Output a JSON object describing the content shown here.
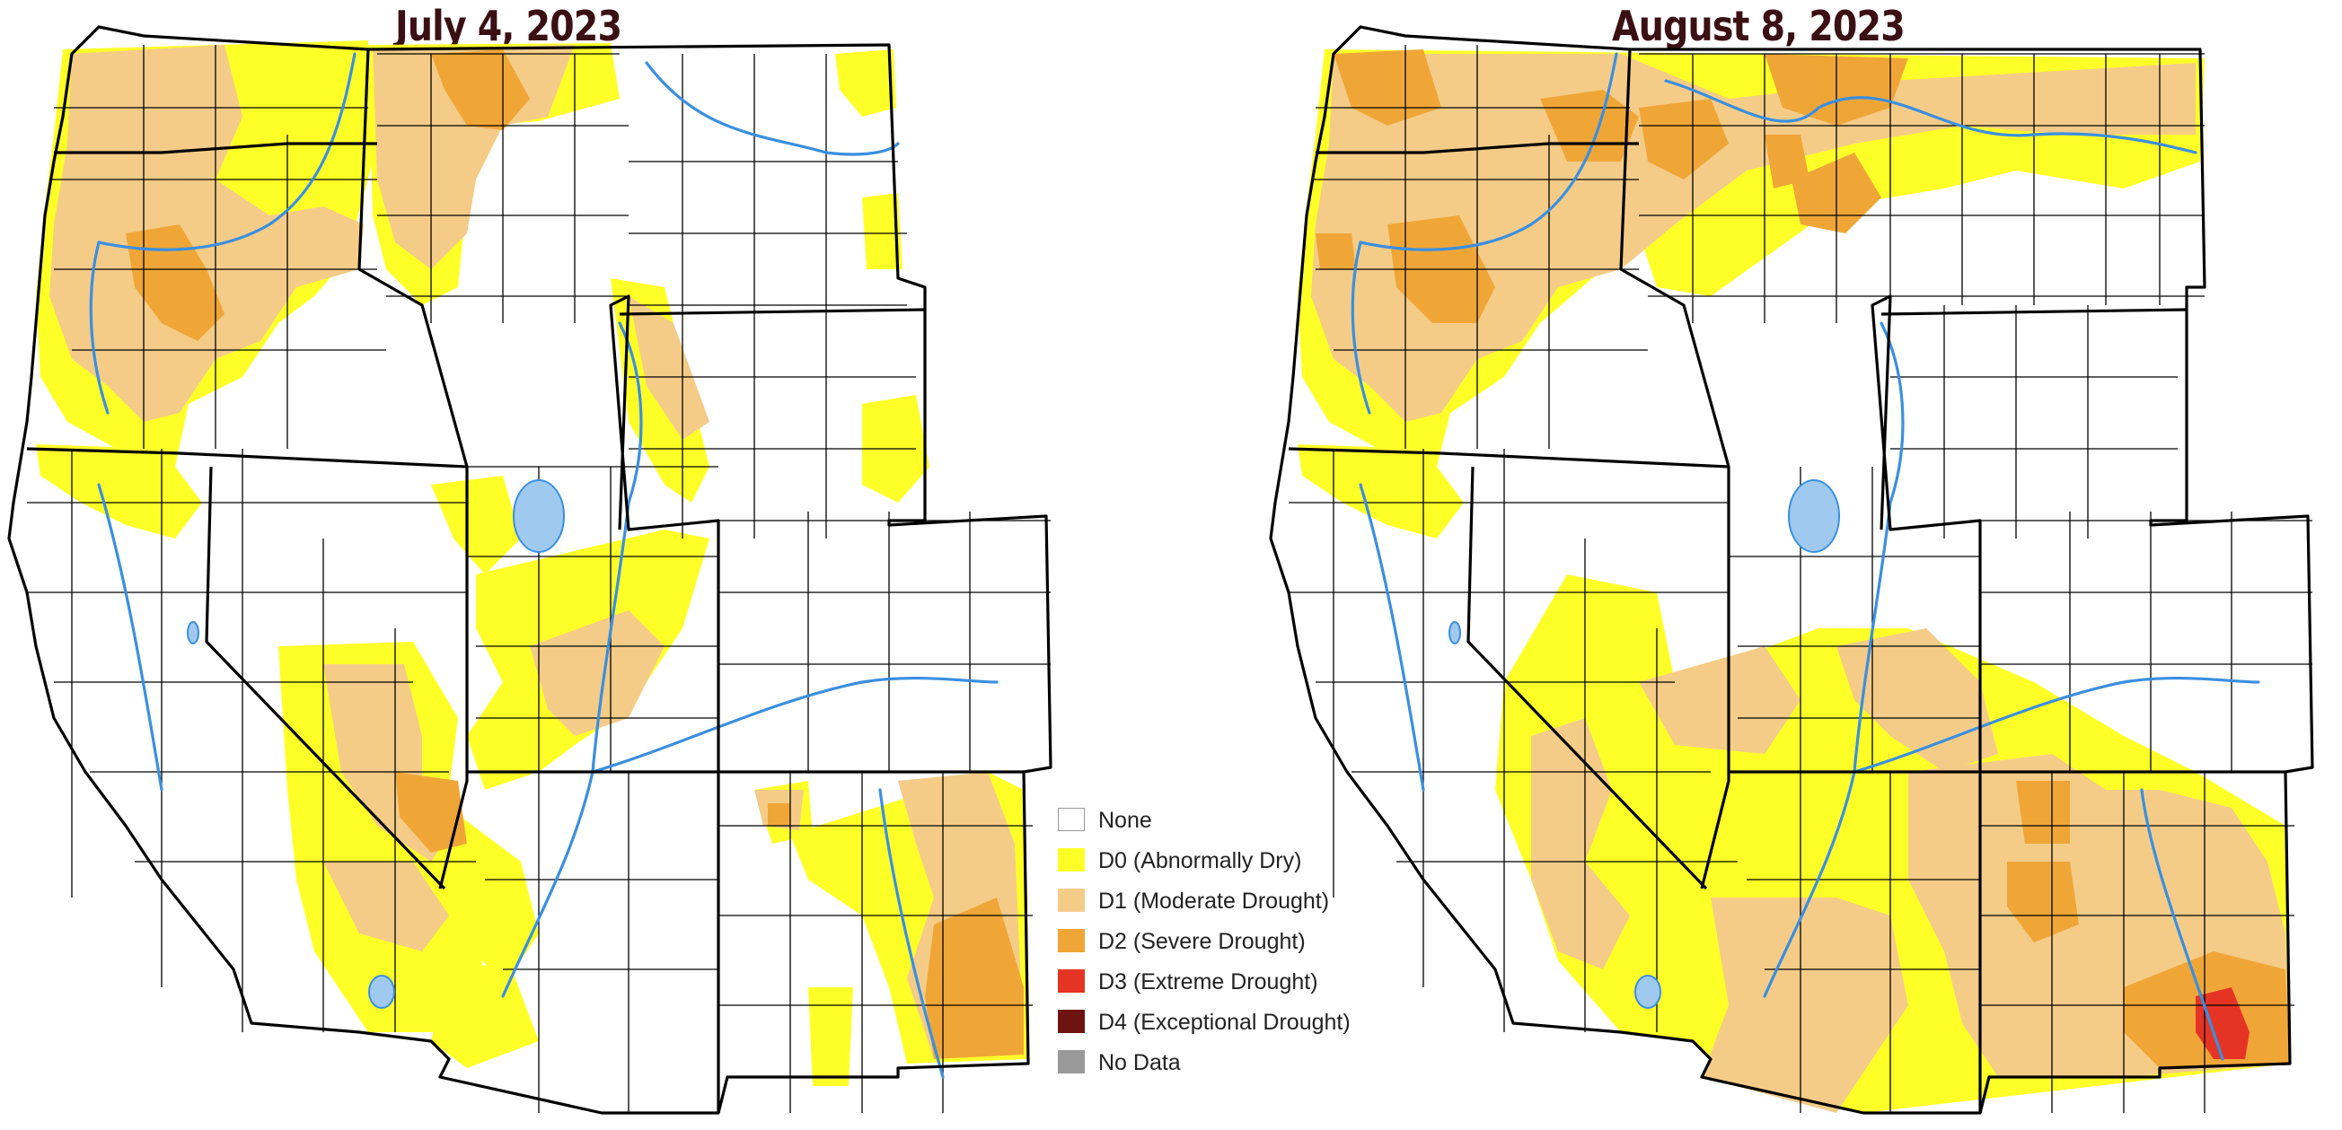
{
  "maps": {
    "left": {
      "title": "July 4, 2023"
    },
    "right": {
      "title": "August 8, 2023"
    }
  },
  "legend": {
    "items": [
      {
        "label": "None",
        "color": "#ffffff",
        "border": "#999999"
      },
      {
        "label": "D0 (Abnormally Dry)",
        "color": "#ffff28",
        "border": "#ffff28"
      },
      {
        "label": "D1 (Moderate Drought)",
        "color": "#f4cc88",
        "border": "#f4cc88"
      },
      {
        "label": "D2 (Severe Drought)",
        "color": "#f0a637",
        "border": "#f0a637"
      },
      {
        "label": "D3 (Extreme Drought)",
        "color": "#e53424",
        "border": "#e53424"
      },
      {
        "label": "D4 (Exceptional Drought)",
        "color": "#6e1410",
        "border": "#6e1410"
      },
      {
        "label": "No Data",
        "color": "#999999",
        "border": "#999999"
      }
    ]
  }
}
